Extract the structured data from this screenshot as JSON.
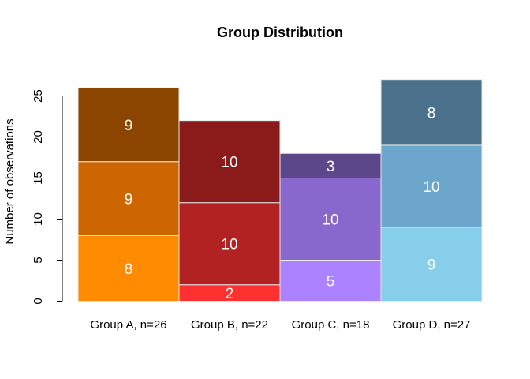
{
  "chart_data": {
    "type": "bar",
    "stacked": true,
    "title": "Group Distribution",
    "xlabel": "",
    "ylabel": "Number of observations",
    "ylim": [
      0,
      27
    ],
    "yticks": [
      0,
      5,
      10,
      15,
      20,
      25
    ],
    "grid": false,
    "categories": [
      "Group A, n=26",
      "Group B, n=22",
      "Group C, n=18",
      "Group D, n=27"
    ],
    "stacks": [
      {
        "segments": [
          {
            "value": 8,
            "color": "#ff8c00"
          },
          {
            "value": 9,
            "color": "#cd6600"
          },
          {
            "value": 9,
            "color": "#8b4500"
          }
        ]
      },
      {
        "segments": [
          {
            "value": 2,
            "color": "#ff3030"
          },
          {
            "value": 10,
            "color": "#b22222"
          },
          {
            "value": 10,
            "color": "#8b1a1a"
          }
        ]
      },
      {
        "segments": [
          {
            "value": 5,
            "color": "#ab82ff"
          },
          {
            "value": 10,
            "color": "#8968cd"
          },
          {
            "value": 3,
            "color": "#5d478b"
          }
        ]
      },
      {
        "segments": [
          {
            "value": 9,
            "color": "#87ceeb"
          },
          {
            "value": 10,
            "color": "#6ca6cd"
          },
          {
            "value": 8,
            "color": "#4a708b"
          }
        ]
      }
    ],
    "segment_border_color": "#e8e8e8",
    "segment_label_color": "#ffffff"
  }
}
